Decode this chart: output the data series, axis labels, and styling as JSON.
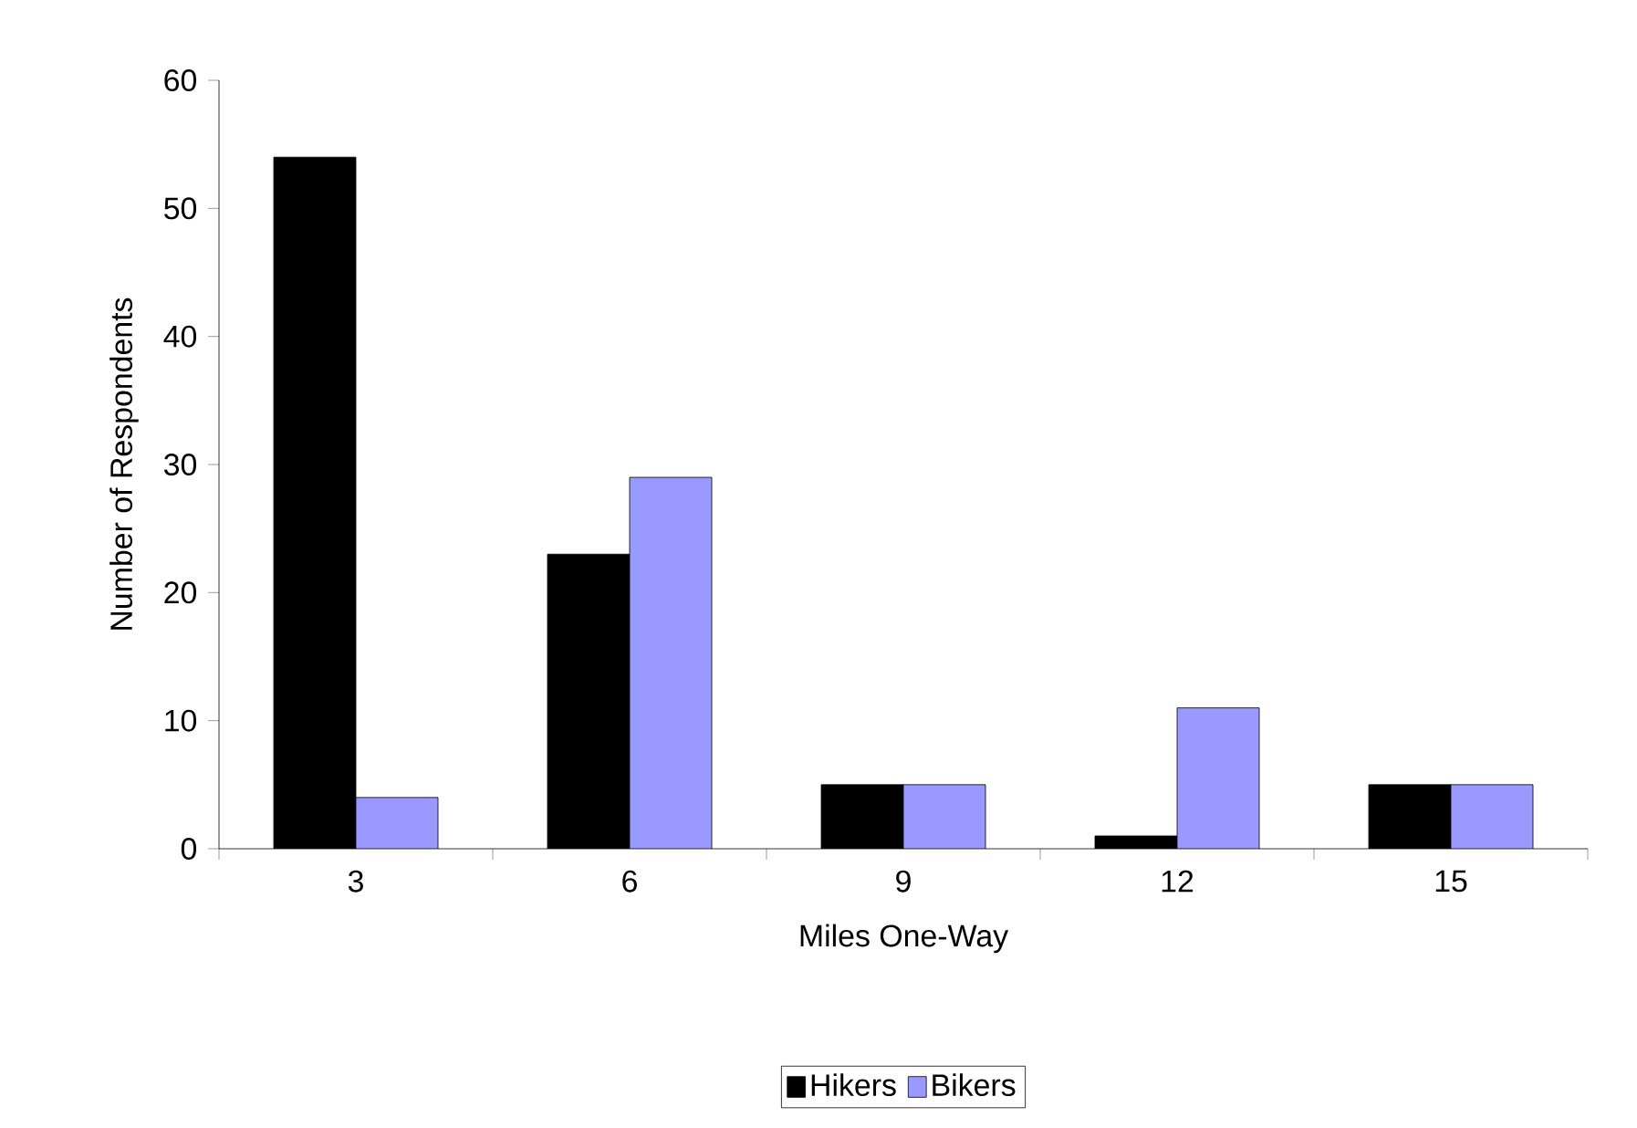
{
  "chart_data": {
    "type": "bar",
    "xlabel": "Miles One-Way",
    "ylabel": "Number of Respondents",
    "categories": [
      "3",
      "6",
      "9",
      "12",
      "15"
    ],
    "series": [
      {
        "name": "Hikers",
        "color": "#000000",
        "values": [
          54,
          23,
          5,
          1,
          5
        ]
      },
      {
        "name": "Bikers",
        "color": "#9999ff",
        "values": [
          4,
          29,
          5,
          11,
          5
        ]
      }
    ],
    "ylim": [
      0,
      60
    ],
    "yticks": [
      0,
      10,
      20,
      30,
      40,
      50,
      60
    ],
    "legend": "bottom"
  }
}
